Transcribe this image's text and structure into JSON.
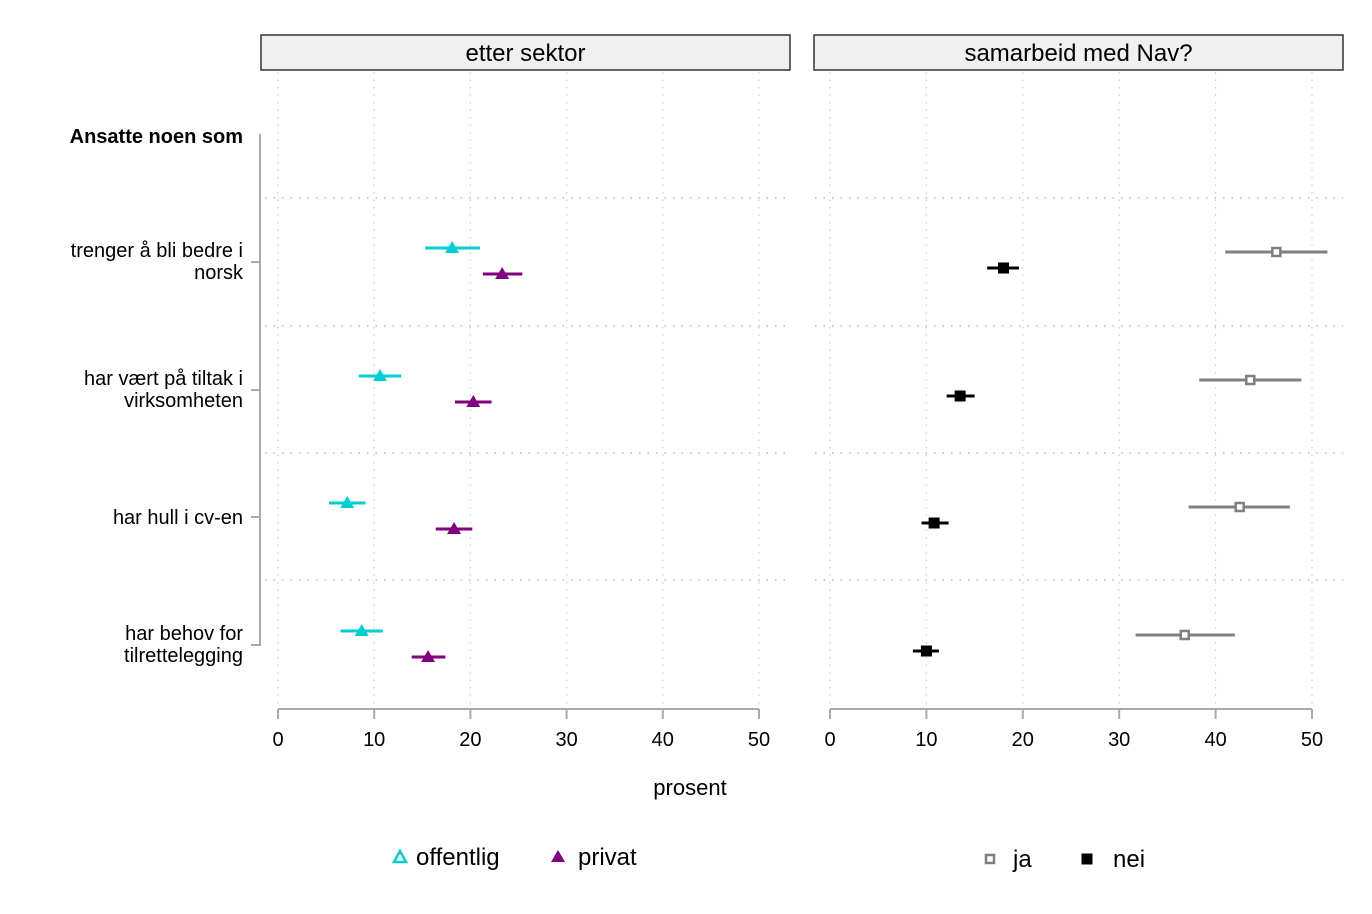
{
  "chart_data": {
    "type": "dot-errorbar",
    "xlabel": "prosent",
    "xlim": [
      0,
      50
    ],
    "xticks": [
      0,
      10,
      20,
      30,
      40,
      50
    ],
    "grid": true,
    "y_header": "Ansatte noen som",
    "categories": [
      [
        "trenger å bli bedre i",
        "norsk"
      ],
      [
        "har vært på tiltak i",
        "virksomheten"
      ],
      [
        "har hull i cv-en"
      ],
      [
        "har behov for",
        "tilrettelegging"
      ]
    ],
    "panels": [
      {
        "title": "etter sektor",
        "legend_position": "bottom",
        "series": [
          {
            "name": "offentlig",
            "color": "#00CED1",
            "marker": "triangle",
            "legend_marker": "open-triangle",
            "values": [
              18.1,
              10.6,
              7.2,
              8.7
            ],
            "lower": [
              15.3,
              8.4,
              5.3,
              6.5
            ],
            "upper": [
              21.0,
              12.8,
              9.1,
              10.9
            ]
          },
          {
            "name": "privat",
            "color": "#800080",
            "marker": "triangle",
            "legend_marker": "triangle",
            "values": [
              23.3,
              20.3,
              18.3,
              15.6
            ],
            "lower": [
              21.3,
              18.4,
              16.4,
              13.9
            ],
            "upper": [
              25.4,
              22.2,
              20.2,
              17.4
            ]
          }
        ]
      },
      {
        "title": "samarbeid med Nav?",
        "legend_position": "bottom",
        "series": [
          {
            "name": "ja",
            "color": "#808080",
            "marker": "open-square",
            "legend_marker": "open-square",
            "values": [
              46.3,
              43.6,
              42.5,
              36.8
            ],
            "lower": [
              41.0,
              38.3,
              37.2,
              31.7
            ],
            "upper": [
              51.6,
              48.9,
              47.7,
              42.0
            ]
          },
          {
            "name": "nei",
            "color": "#000000",
            "marker": "square",
            "legend_marker": "square",
            "values": [
              18.0,
              13.5,
              10.8,
              10.0
            ],
            "lower": [
              16.3,
              12.1,
              9.5,
              8.6
            ],
            "upper": [
              19.6,
              15.0,
              12.3,
              11.3
            ]
          }
        ]
      }
    ]
  }
}
